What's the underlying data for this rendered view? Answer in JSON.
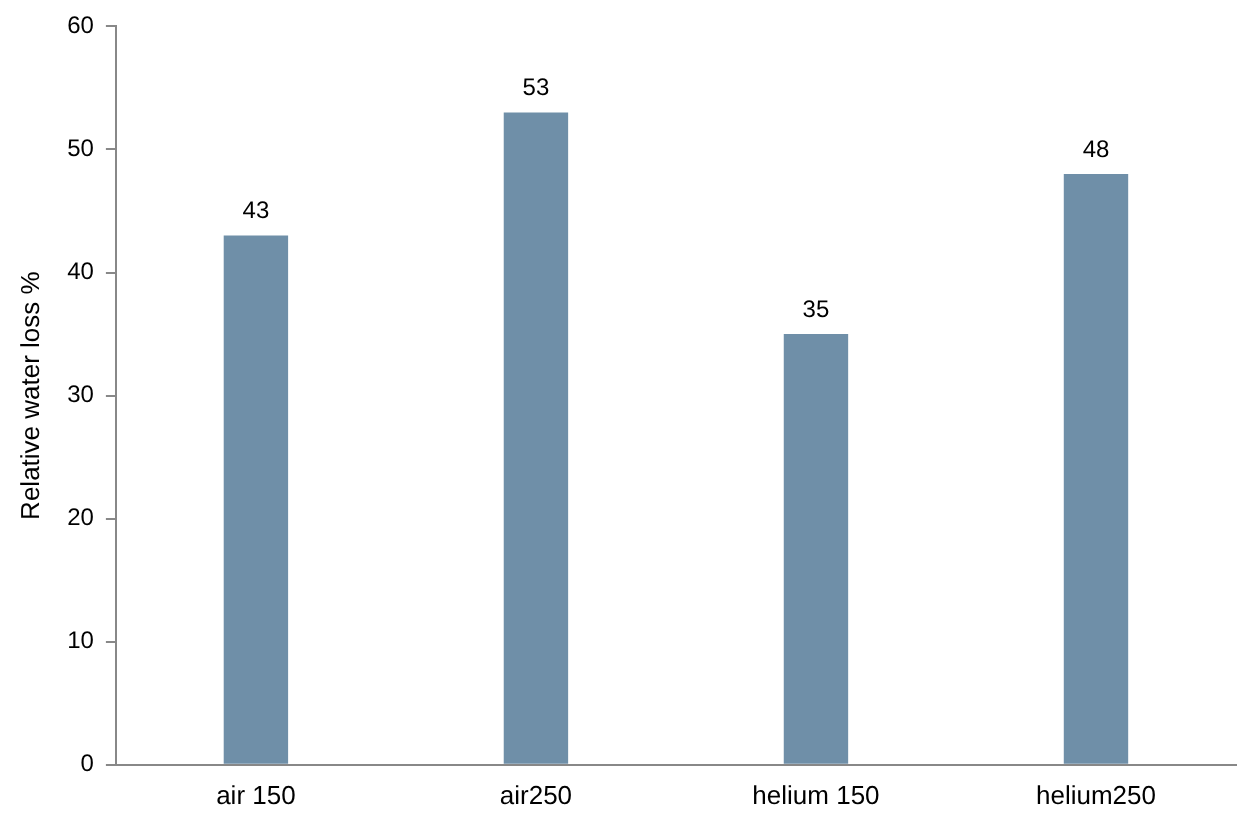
{
  "chart_data": {
    "type": "bar",
    "ylabel": "Relative water loss %",
    "categories": [
      "air 150",
      "air250",
      "helium 150",
      "helium250"
    ],
    "values": [
      43,
      53,
      35,
      48
    ],
    "color": "#6f8fa8",
    "ylim": [
      0,
      60
    ],
    "yticks": [
      0,
      10,
      20,
      30,
      40,
      50,
      60
    ],
    "grid": false,
    "legend": false,
    "data_labels": true
  }
}
